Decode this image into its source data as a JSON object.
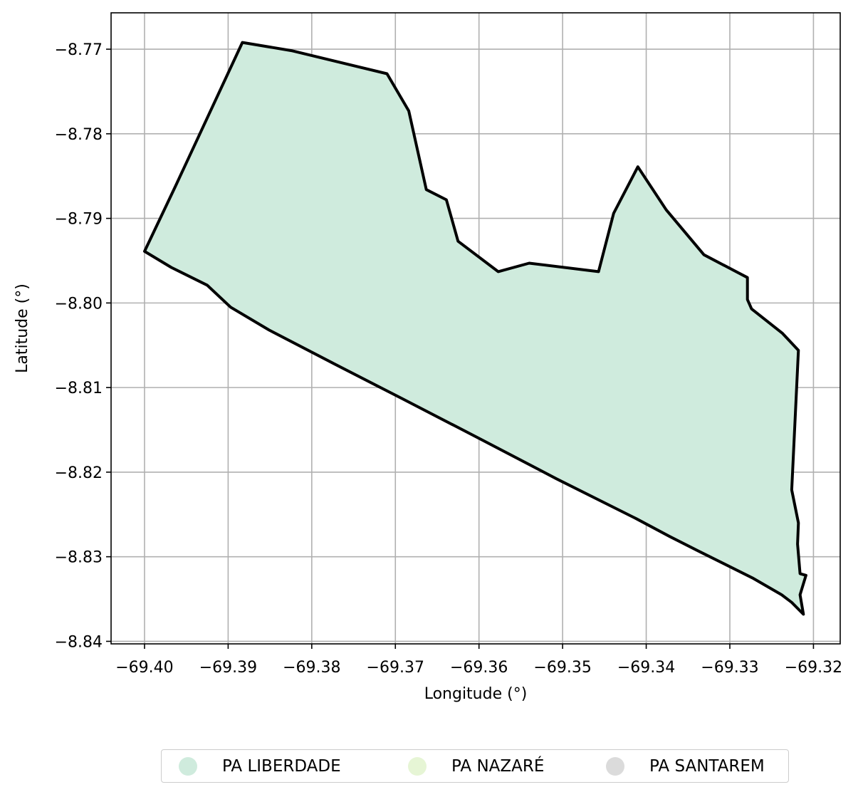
{
  "chart_data": {
    "type": "map",
    "title": "",
    "xlabel": "Longitude (°)",
    "ylabel": "Latitude (°)",
    "xlim": [
      -69.404,
      -69.3168
    ],
    "ylim": [
      -8.8403,
      -8.7657
    ],
    "grid": true,
    "legend_placement": "bottom-center",
    "x_ticks": [
      -69.4,
      -69.39,
      -69.38,
      -69.37,
      -69.36,
      -69.35,
      -69.34,
      -69.33,
      -69.32
    ],
    "x_tick_labels": [
      "−69.40",
      "−69.39",
      "−69.38",
      "−69.37",
      "−69.36",
      "−69.35",
      "−69.34",
      "−69.33",
      "−69.32"
    ],
    "y_ticks": [
      -8.77,
      -8.78,
      -8.79,
      -8.8,
      -8.81,
      -8.82,
      -8.83,
      -8.84
    ],
    "y_tick_labels": [
      "−8.77",
      "−8.78",
      "−8.79",
      "−8.80",
      "−8.81",
      "−8.82",
      "−8.83",
      "−8.84"
    ],
    "series": [
      {
        "name": "PA LIBERDADE",
        "color": "#cfebdd",
        "edge_color": "#000000",
        "polygon": [
          [
            -69.4,
            -8.7939
          ],
          [
            -69.3963,
            -8.7862
          ],
          [
            -69.3883,
            -8.7692
          ],
          [
            -69.3823,
            -8.7702
          ],
          [
            -69.371,
            -8.7729
          ],
          [
            -69.3684,
            -8.7773
          ],
          [
            -69.3663,
            -8.7866
          ],
          [
            -69.3639,
            -8.7878
          ],
          [
            -69.3625,
            -8.7927
          ],
          [
            -69.3577,
            -8.7963
          ],
          [
            -69.354,
            -8.7953
          ],
          [
            -69.3457,
            -8.7963
          ],
          [
            -69.3439,
            -8.7894
          ],
          [
            -69.341,
            -8.7839
          ],
          [
            -69.3376,
            -8.789
          ],
          [
            -69.3331,
            -8.7943
          ],
          [
            -69.3279,
            -8.797
          ],
          [
            -69.3279,
            -8.7996
          ],
          [
            -69.3274,
            -8.8007
          ],
          [
            -69.3237,
            -8.8036
          ],
          [
            -69.3218,
            -8.8056
          ],
          [
            -69.3226,
            -8.8221
          ],
          [
            -69.3218,
            -8.826
          ],
          [
            -69.3219,
            -8.8285
          ],
          [
            -69.3216,
            -8.832
          ],
          [
            -69.3209,
            -8.8322
          ],
          [
            -69.3216,
            -8.8345
          ],
          [
            -69.3212,
            -8.8368
          ],
          [
            -69.3226,
            -8.8354
          ],
          [
            -69.3238,
            -8.8345
          ],
          [
            -69.3273,
            -8.8325
          ],
          [
            -69.3338,
            -8.8293
          ],
          [
            -69.3372,
            -8.8276
          ],
          [
            -69.3412,
            -8.8255
          ],
          [
            -69.3507,
            -8.8208
          ],
          [
            -69.3598,
            -8.8161
          ],
          [
            -69.3692,
            -8.8113
          ],
          [
            -69.3775,
            -8.8071
          ],
          [
            -69.3851,
            -8.8032
          ],
          [
            -69.3897,
            -8.8005
          ],
          [
            -69.3925,
            -8.7979
          ],
          [
            -69.3968,
            -8.7958
          ]
        ]
      },
      {
        "name": "PA NAZARÉ",
        "color": "#e6f5d5",
        "polygon": []
      },
      {
        "name": "PA SANTAREM",
        "color": "#dbdbdb",
        "polygon": []
      }
    ]
  }
}
